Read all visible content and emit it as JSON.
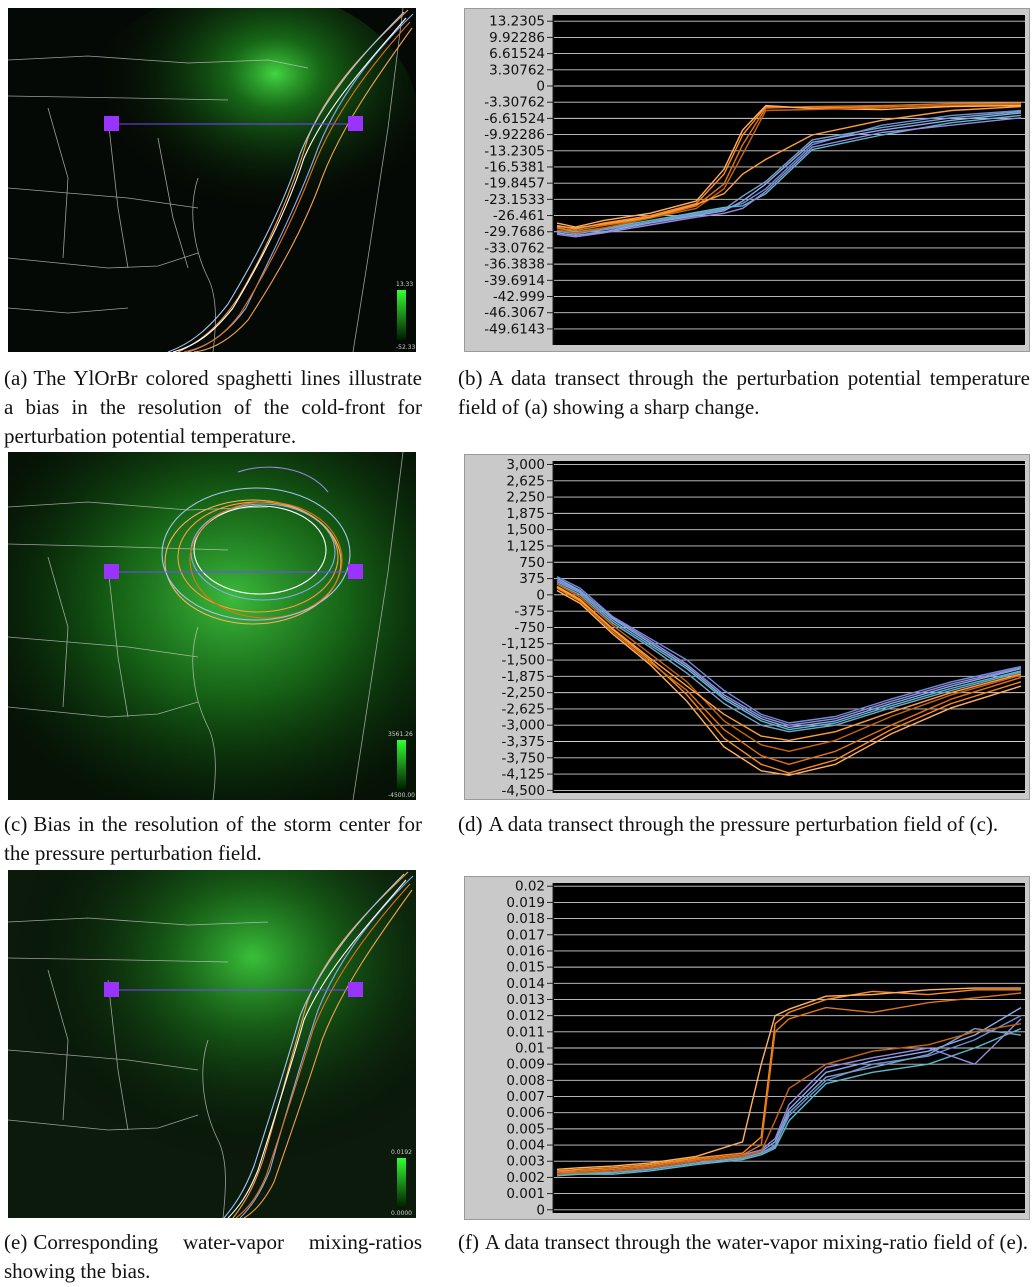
{
  "colors": {
    "map_bg": "#050905",
    "green_glow": "#3bd63b",
    "boundary": "#d8d8d8",
    "transect": "#9a33ff",
    "plot_frame": "#c9c9c9",
    "plot_bg": "#000000",
    "grid": "#c8c8c8",
    "orange_series": [
      "#ff8c1a",
      "#e07316",
      "#ffb060",
      "#c86410",
      "#ff9f3a",
      "#f0a050"
    ],
    "blue_series": [
      "#6b8fd6",
      "#88aaee",
      "#55bbcc",
      "#9988dd",
      "#7aa0c8",
      "#a3c4f0",
      "#5f7fbf",
      "#c070c0"
    ]
  },
  "panels": [
    {
      "id": "a",
      "caption_label": "(a)",
      "caption_text": "The YlOrBr colored spaghetti lines illustrate a bias in the resolution of the cold-front for perturbation potential temperature.",
      "legend_max": "13.33",
      "legend_min": "-52.33"
    },
    {
      "id": "b",
      "caption_label": "(b)",
      "caption_text": "A data transect through the perturbation potential temperature field of (a) showing a sharp change."
    },
    {
      "id": "c",
      "caption_label": "(c)",
      "caption_text": "Bias in the resolution of the storm center for the pressure perturbation field.",
      "legend_max": "3561.26",
      "legend_min": "-4500.00"
    },
    {
      "id": "d",
      "caption_label": "(d)",
      "caption_text": "A data transect through the pressure perturbation field of (c)."
    },
    {
      "id": "e",
      "caption_label": "(e)",
      "caption_text": "Corresponding water-vapor mixing-ratios showing the bias.",
      "legend_max": "0.0192",
      "legend_min": "0.0000"
    },
    {
      "id": "f",
      "caption_label": "(f)",
      "caption_text": "A data transect through the water-vapor mixing-ratio field of (e)."
    }
  ],
  "chart_data": [
    {
      "id": "b",
      "type": "line",
      "title": "",
      "xlabel": "",
      "ylabel": "",
      "ylim": [
        -52.9,
        14.5
      ],
      "yticks": [
        "13.2305",
        "9.92286",
        "6.61524",
        "3.30762",
        "0",
        "-3.30762",
        "-6.61524",
        "-9.92286",
        "-13.2305",
        "-16.5381",
        "-19.8457",
        "-23.1533",
        "-26.461",
        "-29.7686",
        "-33.0762",
        "-36.3838",
        "-39.6914",
        "-42.999",
        "-46.3067",
        "-49.6143"
      ],
      "x": [
        0,
        0.04,
        0.1,
        0.2,
        0.3,
        0.36,
        0.4,
        0.45,
        0.55,
        0.7,
        0.85,
        1.0
      ],
      "series": [
        {
          "name": "orange-1",
          "group": "orange",
          "values": [
            -28.5,
            -29.2,
            -28.0,
            -26.5,
            -24.0,
            -18.0,
            -10.0,
            -4.2,
            -4.5,
            -4.3,
            -4.0,
            -3.8
          ]
        },
        {
          "name": "orange-2",
          "group": "orange",
          "values": [
            -29.0,
            -29.5,
            -28.5,
            -27.0,
            -24.5,
            -20.0,
            -12.0,
            -4.5,
            -4.2,
            -4.0,
            -3.6,
            -3.5
          ]
        },
        {
          "name": "orange-3",
          "group": "orange",
          "values": [
            -28.0,
            -28.8,
            -27.5,
            -26.0,
            -23.5,
            -17.0,
            -9.0,
            -4.0,
            -4.6,
            -4.8,
            -4.2,
            -4.0
          ]
        },
        {
          "name": "orange-4",
          "group": "orange",
          "values": [
            -29.4,
            -30.0,
            -29.0,
            -27.0,
            -25.0,
            -21.0,
            -14.0,
            -5.0,
            -4.8,
            -4.4,
            -3.9,
            -3.7
          ]
        },
        {
          "name": "orange-5",
          "group": "orange",
          "values": [
            -28.7,
            -29.0,
            -28.2,
            -26.8,
            -24.2,
            -22.0,
            -18.0,
            -15.0,
            -10.0,
            -7.0,
            -5.0,
            -4.2
          ]
        },
        {
          "name": "blue-1",
          "group": "blue",
          "values": [
            -29.5,
            -30.2,
            -29.2,
            -27.8,
            -26.0,
            -25.0,
            -24.0,
            -21.0,
            -12.0,
            -8.0,
            -6.0,
            -5.0
          ]
        },
        {
          "name": "blue-2",
          "group": "blue",
          "values": [
            -30.0,
            -30.5,
            -29.8,
            -28.0,
            -26.5,
            -25.5,
            -23.5,
            -20.0,
            -11.5,
            -9.0,
            -7.0,
            -5.5
          ]
        },
        {
          "name": "blue-3",
          "group": "blue",
          "values": [
            -29.0,
            -29.8,
            -29.0,
            -27.5,
            -25.8,
            -24.8,
            -24.5,
            -22.0,
            -13.0,
            -10.0,
            -7.5,
            -6.0
          ]
        },
        {
          "name": "blue-4",
          "group": "blue",
          "values": [
            -30.3,
            -30.8,
            -30.0,
            -28.4,
            -26.8,
            -26.0,
            -25.0,
            -21.5,
            -12.5,
            -9.5,
            -8.0,
            -6.5
          ]
        },
        {
          "name": "blue-5",
          "group": "blue",
          "values": [
            -29.7,
            -30.1,
            -29.4,
            -27.9,
            -26.2,
            -25.2,
            -22.5,
            -19.5,
            -11.0,
            -8.5,
            -6.5,
            -5.2
          ]
        }
      ]
    },
    {
      "id": "d",
      "type": "line",
      "title": "",
      "xlabel": "",
      "ylabel": "",
      "ylim": [
        -4560,
        3080
      ],
      "yticks": [
        "3,000",
        "2,625",
        "2,250",
        "1,875",
        "1,500",
        "1,125",
        "750",
        "375",
        "0",
        "-375",
        "-750",
        "-1,125",
        "-1,500",
        "-1,875",
        "-2,250",
        "-2,625",
        "-3,000",
        "-3,375",
        "-3,750",
        "-4,125",
        "-4,500"
      ],
      "x": [
        0,
        0.05,
        0.12,
        0.2,
        0.28,
        0.36,
        0.44,
        0.5,
        0.6,
        0.72,
        0.85,
        1.0
      ],
      "series": [
        {
          "name": "blue-1",
          "group": "blue",
          "values": [
            420,
            150,
            -500,
            -1000,
            -1500,
            -2200,
            -2750,
            -2950,
            -2800,
            -2400,
            -2000,
            -1650
          ]
        },
        {
          "name": "blue-2",
          "group": "blue",
          "values": [
            380,
            100,
            -550,
            -1100,
            -1650,
            -2350,
            -2850,
            -3050,
            -2900,
            -2500,
            -2100,
            -1700
          ]
        },
        {
          "name": "blue-3",
          "group": "blue",
          "values": [
            300,
            50,
            -600,
            -1150,
            -1700,
            -2400,
            -2900,
            -3100,
            -2950,
            -2550,
            -2150,
            -1750
          ]
        },
        {
          "name": "blue-4",
          "group": "blue",
          "values": [
            340,
            80,
            -520,
            -1050,
            -1600,
            -2300,
            -2800,
            -3000,
            -2850,
            -2450,
            -2050,
            -1680
          ]
        },
        {
          "name": "blue-5",
          "group": "blue",
          "values": [
            260,
            0,
            -650,
            -1200,
            -1800,
            -2500,
            -3000,
            -3150,
            -3000,
            -2600,
            -2200,
            -1780
          ]
        },
        {
          "name": "orange-1",
          "group": "orange",
          "values": [
            200,
            -100,
            -800,
            -1500,
            -2300,
            -3300,
            -3900,
            -4100,
            -3800,
            -3100,
            -2500,
            -2000
          ]
        },
        {
          "name": "orange-2",
          "group": "orange",
          "values": [
            150,
            -150,
            -850,
            -1550,
            -2200,
            -3100,
            -3700,
            -3900,
            -3600,
            -3000,
            -2400,
            -1900
          ]
        },
        {
          "name": "orange-3",
          "group": "orange",
          "values": [
            100,
            -200,
            -900,
            -1600,
            -2450,
            -3500,
            -4050,
            -4150,
            -3900,
            -3200,
            -2600,
            -2100
          ]
        },
        {
          "name": "orange-4",
          "group": "orange",
          "values": [
            250,
            -50,
            -700,
            -1350,
            -2000,
            -2900,
            -3450,
            -3600,
            -3350,
            -2800,
            -2300,
            -1850
          ]
        },
        {
          "name": "orange-5",
          "group": "orange",
          "values": [
            180,
            -120,
            -780,
            -1450,
            -2100,
            -2750,
            -3250,
            -3350,
            -3150,
            -2700,
            -2250,
            -1820
          ]
        }
      ]
    },
    {
      "id": "f",
      "type": "line",
      "title": "",
      "xlabel": "",
      "ylabel": "",
      "ylim": [
        -0.0002,
        0.0202
      ],
      "yticks": [
        "0.02",
        "0.019",
        "0.018",
        "0.017",
        "0.016",
        "0.015",
        "0.014",
        "0.013",
        "0.012",
        "0.011",
        "0.01",
        "0.009",
        "0.008",
        "0.007",
        "0.006",
        "0.005",
        "0.004",
        "0.003",
        "0.002",
        "0.001",
        "0"
      ],
      "x": [
        0,
        0.05,
        0.12,
        0.2,
        0.3,
        0.4,
        0.44,
        0.47,
        0.5,
        0.58,
        0.68,
        0.8,
        0.9,
        1.0
      ],
      "series": [
        {
          "name": "orange-1",
          "group": "orange",
          "values": [
            0.0024,
            0.0025,
            0.0026,
            0.0028,
            0.0032,
            0.0035,
            0.0045,
            0.0115,
            0.0122,
            0.013,
            0.0135,
            0.0133,
            0.0136,
            0.0136
          ]
        },
        {
          "name": "orange-2",
          "group": "orange",
          "values": [
            0.0023,
            0.0024,
            0.0025,
            0.0027,
            0.0031,
            0.0034,
            0.004,
            0.011,
            0.0118,
            0.0125,
            0.0122,
            0.0128,
            0.0131,
            0.0134
          ]
        },
        {
          "name": "orange-3",
          "group": "orange",
          "values": [
            0.0025,
            0.0026,
            0.0027,
            0.0029,
            0.0033,
            0.0042,
            0.009,
            0.012,
            0.0124,
            0.0132,
            0.0133,
            0.0136,
            0.0137,
            0.0137
          ]
        },
        {
          "name": "orange-4",
          "group": "orange",
          "values": [
            0.0022,
            0.0023,
            0.0024,
            0.0026,
            0.003,
            0.0033,
            0.0036,
            0.0055,
            0.0075,
            0.009,
            0.0098,
            0.0102,
            0.011,
            0.0115
          ]
        },
        {
          "name": "blue-1",
          "group": "blue",
          "values": [
            0.0022,
            0.0022,
            0.0023,
            0.0025,
            0.0029,
            0.0032,
            0.0035,
            0.004,
            0.0058,
            0.008,
            0.009,
            0.0095,
            0.0105,
            0.012
          ]
        },
        {
          "name": "blue-2",
          "group": "blue",
          "values": [
            0.0023,
            0.0023,
            0.0024,
            0.0026,
            0.003,
            0.0033,
            0.0036,
            0.0042,
            0.0062,
            0.0085,
            0.0092,
            0.0098,
            0.0108,
            0.0125
          ]
        },
        {
          "name": "blue-3",
          "group": "blue",
          "values": [
            0.0021,
            0.0022,
            0.0022,
            0.0024,
            0.0028,
            0.0031,
            0.0034,
            0.0038,
            0.0055,
            0.0078,
            0.0085,
            0.009,
            0.01,
            0.0112
          ]
        },
        {
          "name": "blue-4",
          "group": "blue",
          "values": [
            0.0024,
            0.0024,
            0.0025,
            0.0027,
            0.0031,
            0.0034,
            0.0037,
            0.0044,
            0.0065,
            0.0088,
            0.0094,
            0.01,
            0.009,
            0.0118
          ]
        },
        {
          "name": "blue-5",
          "group": "blue",
          "values": [
            0.0022,
            0.0023,
            0.0023,
            0.0025,
            0.0029,
            0.0032,
            0.0035,
            0.0039,
            0.006,
            0.0082,
            0.0088,
            0.0096,
            0.0112,
            0.0108
          ]
        }
      ]
    }
  ]
}
